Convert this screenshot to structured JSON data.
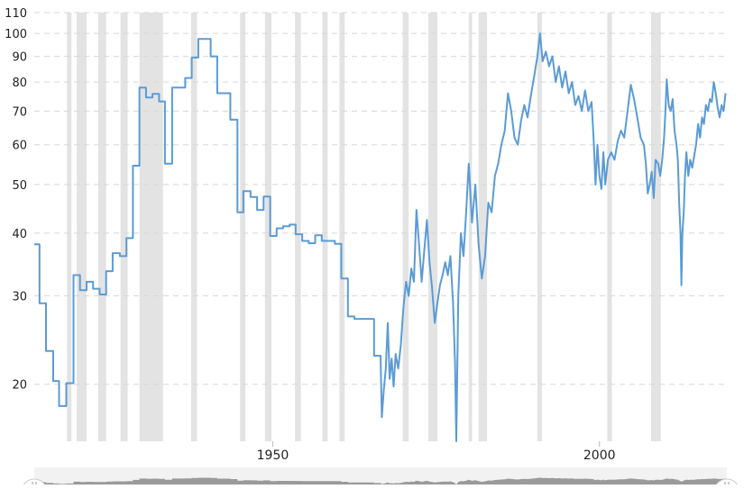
{
  "chart_data": {
    "type": "line",
    "title": "",
    "xlabel": "",
    "ylabel": "",
    "y_scale": "log",
    "ylim": [
      15.4,
      110
    ],
    "xlim": [
      1913.5,
      2019.5
    ],
    "y_ticks": [
      "20",
      "30",
      "40",
      "50",
      "60",
      "70",
      "80",
      "90",
      "100",
      "110"
    ],
    "x_ticks": [
      "1950",
      "2000"
    ],
    "grid": "horizontal-dashed",
    "line_color": "#5b9bd5",
    "band_color": "#e3e3e3",
    "shaded_periods": [
      [
        1918.5,
        1919.2
      ],
      [
        1920.0,
        1921.5
      ],
      [
        1923.3,
        1924.5
      ],
      [
        1926.7,
        1927.8
      ],
      [
        1929.6,
        1933.2
      ],
      [
        1937.5,
        1938.4
      ],
      [
        1945.0,
        1945.8
      ],
      [
        1948.8,
        1949.8
      ],
      [
        1953.4,
        1954.3
      ],
      [
        1957.6,
        1958.4
      ],
      [
        1960.2,
        1961.0
      ],
      [
        1969.9,
        1970.8
      ],
      [
        1973.8,
        1975.2
      ],
      [
        1980.0,
        1980.5
      ],
      [
        1981.5,
        1982.8
      ],
      [
        1990.5,
        1991.2
      ],
      [
        2001.2,
        2001.9
      ],
      [
        2007.9,
        2009.4
      ]
    ],
    "series": [
      {
        "values": [
          [
            1913.5,
            38
          ],
          [
            1914.3,
            38
          ],
          [
            1914.3,
            29
          ],
          [
            1915.3,
            29
          ],
          [
            1915.3,
            23.3
          ],
          [
            1916.4,
            23.3
          ],
          [
            1916.4,
            20.3
          ],
          [
            1917.3,
            20.3
          ],
          [
            1917.3,
            18.1
          ],
          [
            1918.4,
            18.1
          ],
          [
            1918.4,
            20.1
          ],
          [
            1919.5,
            20.1
          ],
          [
            1919.5,
            33
          ],
          [
            1920.5,
            33
          ],
          [
            1920.5,
            30.8
          ],
          [
            1921.5,
            30.8
          ],
          [
            1921.5,
            32
          ],
          [
            1922.5,
            32
          ],
          [
            1922.5,
            31
          ],
          [
            1923.5,
            31
          ],
          [
            1923.5,
            30.2
          ],
          [
            1924.5,
            30.2
          ],
          [
            1924.5,
            33.6
          ],
          [
            1925.5,
            33.6
          ],
          [
            1925.5,
            36.5
          ],
          [
            1926.6,
            36.5
          ],
          [
            1926.6,
            36
          ],
          [
            1927.6,
            36
          ],
          [
            1927.6,
            39.1
          ],
          [
            1928.6,
            39.1
          ],
          [
            1928.6,
            54.5
          ],
          [
            1929.6,
            54.5
          ],
          [
            1929.6,
            78
          ],
          [
            1930.6,
            78
          ],
          [
            1930.6,
            74.5
          ],
          [
            1931.6,
            74.5
          ],
          [
            1931.6,
            75.8
          ],
          [
            1932.6,
            75.8
          ],
          [
            1932.6,
            73.2
          ],
          [
            1933.5,
            73.2
          ],
          [
            1933.5,
            55
          ],
          [
            1934.6,
            55
          ],
          [
            1934.6,
            78
          ],
          [
            1936.6,
            78
          ],
          [
            1936.6,
            81.5
          ],
          [
            1937.6,
            81.5
          ],
          [
            1937.6,
            89.5
          ],
          [
            1938.6,
            89.5
          ],
          [
            1938.6,
            97.5
          ],
          [
            1940.5,
            97.5
          ],
          [
            1940.5,
            90
          ],
          [
            1941.5,
            90
          ],
          [
            1941.5,
            76
          ],
          [
            1943.5,
            76
          ],
          [
            1943.5,
            67.3
          ],
          [
            1944.6,
            67.3
          ],
          [
            1944.6,
            44
          ],
          [
            1945.5,
            44
          ],
          [
            1945.5,
            48.5
          ],
          [
            1946.6,
            48.5
          ],
          [
            1946.6,
            47.2
          ],
          [
            1947.6,
            47.2
          ],
          [
            1947.6,
            44.5
          ],
          [
            1948.6,
            44.5
          ],
          [
            1948.6,
            47.3
          ],
          [
            1949.6,
            47.3
          ],
          [
            1949.6,
            39.5
          ],
          [
            1950.6,
            39.5
          ],
          [
            1950.6,
            40.9
          ],
          [
            1951.6,
            40.9
          ],
          [
            1951.6,
            41.3
          ],
          [
            1952.6,
            41.3
          ],
          [
            1952.6,
            41.6
          ],
          [
            1953.5,
            41.6
          ],
          [
            1953.5,
            39.8
          ],
          [
            1954.5,
            39.8
          ],
          [
            1954.5,
            38.6
          ],
          [
            1955.5,
            38.6
          ],
          [
            1955.5,
            38.2
          ],
          [
            1956.5,
            38.2
          ],
          [
            1956.5,
            39.6
          ],
          [
            1957.5,
            39.6
          ],
          [
            1957.5,
            38.6
          ],
          [
            1958.5,
            38.6
          ],
          [
            1958.5,
            38.6
          ],
          [
            1959.5,
            38.6
          ],
          [
            1959.5,
            38.1
          ],
          [
            1960.5,
            38.1
          ],
          [
            1960.5,
            32.5
          ],
          [
            1961.5,
            32.5
          ],
          [
            1961.5,
            27.3
          ],
          [
            1962.5,
            27.3
          ],
          [
            1962.5,
            27
          ],
          [
            1963.5,
            27
          ],
          [
            1963.5,
            27
          ],
          [
            1965.5,
            27
          ],
          [
            1965.5,
            22.8
          ],
          [
            1966.5,
            22.8
          ],
          [
            1966.7,
            17.2
          ],
          [
            1967.0,
            19.5
          ],
          [
            1967.3,
            21.5
          ],
          [
            1967.6,
            26.5
          ],
          [
            1967.9,
            20.5
          ],
          [
            1968.2,
            22.5
          ],
          [
            1968.5,
            19.8
          ],
          [
            1968.8,
            23
          ],
          [
            1969.2,
            21.5
          ],
          [
            1969.6,
            24
          ],
          [
            1970.0,
            28.5
          ],
          [
            1970.4,
            32
          ],
          [
            1970.8,
            30
          ],
          [
            1971.2,
            34
          ],
          [
            1971.6,
            32
          ],
          [
            1972.0,
            44.5
          ],
          [
            1972.4,
            38
          ],
          [
            1972.8,
            32
          ],
          [
            1973.2,
            37
          ],
          [
            1973.6,
            42.5
          ],
          [
            1974.0,
            35
          ],
          [
            1974.4,
            31
          ],
          [
            1974.8,
            26.5
          ],
          [
            1975.2,
            29
          ],
          [
            1975.6,
            31.5
          ],
          [
            1976.0,
            33
          ],
          [
            1976.4,
            35
          ],
          [
            1976.8,
            33
          ],
          [
            1977.2,
            36
          ],
          [
            1977.6,
            29
          ],
          [
            1977.9,
            22
          ],
          [
            1978.1,
            15.4
          ],
          [
            1978.4,
            30
          ],
          [
            1978.8,
            40
          ],
          [
            1979.2,
            36
          ],
          [
            1979.6,
            44
          ],
          [
            1980.0,
            55
          ],
          [
            1980.5,
            42
          ],
          [
            1981.0,
            50
          ],
          [
            1981.5,
            38
          ],
          [
            1982.0,
            32.5
          ],
          [
            1982.5,
            36
          ],
          [
            1983.0,
            46
          ],
          [
            1983.5,
            44
          ],
          [
            1984.0,
            52
          ],
          [
            1984.5,
            55
          ],
          [
            1985.0,
            60
          ],
          [
            1985.5,
            64
          ],
          [
            1986.0,
            76
          ],
          [
            1986.5,
            70
          ],
          [
            1987.0,
            62
          ],
          [
            1987.5,
            60
          ],
          [
            1988.0,
            67
          ],
          [
            1988.5,
            72
          ],
          [
            1989.0,
            68
          ],
          [
            1989.5,
            75
          ],
          [
            1990.0,
            82
          ],
          [
            1990.5,
            90
          ],
          [
            1990.9,
            100
          ],
          [
            1991.3,
            88
          ],
          [
            1991.8,
            92
          ],
          [
            1992.3,
            86
          ],
          [
            1992.8,
            90
          ],
          [
            1993.3,
            80
          ],
          [
            1993.8,
            86
          ],
          [
            1994.3,
            78
          ],
          [
            1994.8,
            84
          ],
          [
            1995.3,
            76
          ],
          [
            1995.8,
            80
          ],
          [
            1996.3,
            72
          ],
          [
            1996.8,
            75
          ],
          [
            1997.3,
            70
          ],
          [
            1997.8,
            77
          ],
          [
            1998.3,
            70
          ],
          [
            1998.8,
            73
          ],
          [
            1999.1,
            62
          ],
          [
            1999.4,
            50
          ],
          [
            1999.7,
            60
          ],
          [
            2000.0,
            52
          ],
          [
            2000.3,
            49
          ],
          [
            2000.6,
            58
          ],
          [
            2000.9,
            50
          ],
          [
            2001.3,
            56
          ],
          [
            2001.8,
            58
          ],
          [
            2002.3,
            56
          ],
          [
            2002.8,
            61
          ],
          [
            2003.3,
            64
          ],
          [
            2003.8,
            62
          ],
          [
            2004.3,
            70
          ],
          [
            2004.8,
            79
          ],
          [
            2005.3,
            74
          ],
          [
            2005.8,
            68
          ],
          [
            2006.3,
            62
          ],
          [
            2006.8,
            60
          ],
          [
            2007.1,
            55
          ],
          [
            2007.4,
            48
          ],
          [
            2007.7,
            50
          ],
          [
            2008.0,
            53
          ],
          [
            2008.3,
            47
          ],
          [
            2008.6,
            56
          ],
          [
            2009.0,
            55
          ],
          [
            2009.3,
            52
          ],
          [
            2009.6,
            56
          ],
          [
            2009.9,
            62
          ],
          [
            2010.1,
            70
          ],
          [
            2010.3,
            81
          ],
          [
            2010.6,
            72
          ],
          [
            2010.9,
            70
          ],
          [
            2011.2,
            74
          ],
          [
            2011.5,
            64
          ],
          [
            2011.8,
            60
          ],
          [
            2012.0,
            56
          ],
          [
            2012.2,
            46
          ],
          [
            2012.4,
            40
          ],
          [
            2012.55,
            31.5
          ],
          [
            2012.7,
            40
          ],
          [
            2012.9,
            44
          ],
          [
            2013.1,
            52
          ],
          [
            2013.3,
            58
          ],
          [
            2013.6,
            52
          ],
          [
            2013.9,
            56
          ],
          [
            2014.2,
            54
          ],
          [
            2014.5,
            57
          ],
          [
            2014.8,
            60
          ],
          [
            2015.1,
            66
          ],
          [
            2015.4,
            62
          ],
          [
            2015.7,
            68
          ],
          [
            2016.0,
            66
          ],
          [
            2016.3,
            72
          ],
          [
            2016.6,
            70
          ],
          [
            2016.9,
            74
          ],
          [
            2017.2,
            73
          ],
          [
            2017.5,
            80
          ],
          [
            2017.8,
            76
          ],
          [
            2018.1,
            71
          ],
          [
            2018.4,
            68
          ],
          [
            2018.7,
            72
          ],
          [
            2019.0,
            70
          ],
          [
            2019.3,
            76
          ]
        ]
      }
    ]
  }
}
